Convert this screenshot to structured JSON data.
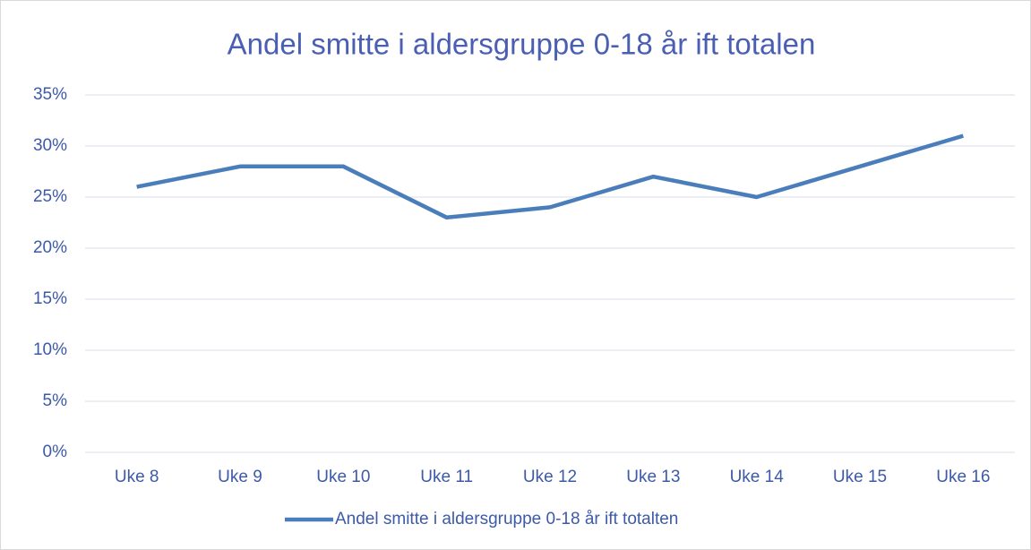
{
  "chart_data": {
    "type": "line",
    "title": "Andel smitte i aldersgruppe 0-18 år ift totalen",
    "categories": [
      "Uke 8",
      "Uke 9",
      "Uke 10",
      "Uke 11",
      "Uke 12",
      "Uke 13",
      "Uke 14",
      "Uke 15",
      "Uke 16"
    ],
    "series": [
      {
        "name": "Andel smitte i aldersgruppe 0-18 år ift totalten",
        "color": "#4a7ebb",
        "values": [
          26,
          28,
          28,
          23,
          24,
          27,
          25,
          28,
          31
        ]
      }
    ],
    "ylim": [
      0,
      35
    ],
    "yticks": [
      {
        "value": 0,
        "label": "0%"
      },
      {
        "value": 5,
        "label": "5%"
      },
      {
        "value": 10,
        "label": "10%"
      },
      {
        "value": 15,
        "label": "15%"
      },
      {
        "value": 20,
        "label": "20%"
      },
      {
        "value": 25,
        "label": "25%"
      },
      {
        "value": 30,
        "label": "30%"
      },
      {
        "value": 35,
        "label": "35%"
      }
    ],
    "grid": true,
    "legend": "bottom"
  }
}
